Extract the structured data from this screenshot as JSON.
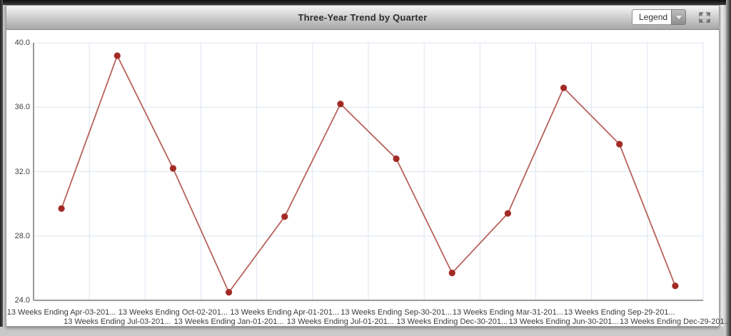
{
  "header": {
    "title": "Three-Year Trend by Quarter",
    "legend_label": "Legend",
    "icons": {
      "dropdown_arrow": "chevron-down-icon",
      "expand": "expand-arrows-icon"
    }
  },
  "chart_data": {
    "type": "line",
    "title": "Three-Year Trend by Quarter",
    "x_labels": [
      "13 Weeks Ending Apr-03-201...",
      "13 Weeks Ending Jul-03-201...",
      "13 Weeks Ending Oct-02-201...",
      "13 Weeks Ending Jan-01-201...",
      "13 Weeks Ending Apr-01-201...",
      "13 Weeks Ending Jul-01-201...",
      "13 Weeks Ending Sep-30-201...",
      "13 Weeks Ending Dec-30-201...",
      "13 Weeks Ending Mar-31-201...",
      "13 Weeks Ending Jun-30-201...",
      "13 Weeks Ending Sep-29-201...",
      "13 Weeks Ending Dec-29-201..."
    ],
    "values": [
      29.7,
      39.2,
      32.2,
      24.5,
      29.2,
      36.2,
      32.8,
      25.7,
      29.4,
      37.2,
      33.7,
      24.9
    ],
    "ylim": [
      24,
      40
    ],
    "y_tick_values": [
      40,
      36,
      32,
      28,
      24
    ],
    "y_tick_labels": [
      "40.0",
      "36.0",
      "32.0",
      "28.0",
      "24.0"
    ],
    "grid": true,
    "legend_position": "header-dropdown-collapsed",
    "x_label_layout": "staggered-two-rows",
    "colors": {
      "line": "#b8625c",
      "marker": "#a32b25",
      "gridline": "#dce5f1",
      "axis": "#9a9a9a",
      "tick_text": "#3a3a3a"
    }
  }
}
